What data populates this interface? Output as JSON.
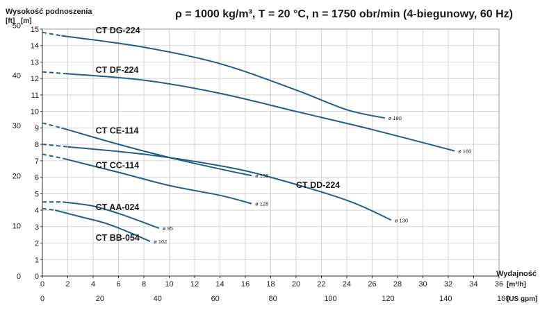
{
  "chart_data": {
    "type": "line",
    "title": "ρ = 1000 kg/m³, T = 20 °C, n = 1750 obr/min (4-biegunowy, 60 Hz)",
    "ylabel": "Wysokość podnoszenia",
    "y_units": [
      "[ft]",
      "[m]"
    ],
    "xlabel": "Wydajność",
    "x_units": [
      "[m³/h]",
      "[US gpm]"
    ],
    "xlim_m3h": [
      0,
      36
    ],
    "ylim_m": [
      0,
      15
    ],
    "x_ticks_m3h": [
      "0",
      "2",
      "4",
      "6",
      "8",
      "10",
      "12",
      "14",
      "16",
      "18",
      "20",
      "22",
      "24",
      "26",
      "28",
      "30",
      "32",
      "34",
      "36"
    ],
    "y_ticks_m": [
      "0",
      "1",
      "2",
      "3",
      "4",
      "5",
      "6",
      "7",
      "8",
      "9",
      "10",
      "11",
      "12",
      "13",
      "14",
      "15"
    ],
    "y_ticks_ft": [
      "0",
      "10",
      "20",
      "30",
      "40",
      "50"
    ],
    "x_ticks_gpm": [
      "0",
      "20",
      "40",
      "60",
      "80",
      "100",
      "120",
      "140",
      "160"
    ],
    "grid": true,
    "series": [
      {
        "name": "CT DG-224",
        "diameter": "ø 180",
        "dashed": [
          [
            0,
            14.8
          ],
          [
            1.5,
            14.6
          ]
        ],
        "points": [
          [
            1.5,
            14.6
          ],
          [
            8,
            13.9
          ],
          [
            14,
            12.9
          ],
          [
            20,
            11.3
          ],
          [
            24,
            10.1
          ],
          [
            27,
            9.6
          ]
        ]
      },
      {
        "name": "CT DF-224",
        "diameter": "ø 160",
        "dashed": [
          [
            0,
            12.4
          ],
          [
            1.8,
            12.3
          ]
        ],
        "points": [
          [
            1.8,
            12.3
          ],
          [
            8,
            11.9
          ],
          [
            14,
            11.1
          ],
          [
            20,
            10.0
          ],
          [
            26,
            8.9
          ],
          [
            32.5,
            7.6
          ]
        ]
      },
      {
        "name": "CT CE-114",
        "diameter": "ø 138",
        "dashed": [
          [
            0,
            9.3
          ],
          [
            1.5,
            9.0
          ]
        ],
        "points": [
          [
            1.5,
            9.0
          ],
          [
            6,
            8.0
          ],
          [
            10,
            7.2
          ],
          [
            14,
            6.5
          ],
          [
            16.5,
            6.1
          ]
        ]
      },
      {
        "name": "CT DD-224",
        "diameter": "ø 130",
        "dashed": [
          [
            0,
            8.0
          ],
          [
            2.0,
            7.85
          ]
        ],
        "points": [
          [
            2.0,
            7.85
          ],
          [
            8,
            7.4
          ],
          [
            14,
            6.7
          ],
          [
            18,
            6.0
          ],
          [
            24,
            4.6
          ],
          [
            27.5,
            3.4
          ]
        ]
      },
      {
        "name": "CT CC-114",
        "diameter": "ø 128",
        "dashed": [
          [
            0,
            7.4
          ],
          [
            1.6,
            7.15
          ]
        ],
        "points": [
          [
            1.6,
            7.15
          ],
          [
            6,
            6.3
          ],
          [
            10,
            5.5
          ],
          [
            14,
            4.9
          ],
          [
            16.5,
            4.4
          ]
        ]
      },
      {
        "name": "CT AA-024",
        "diameter": "ø 95",
        "dashed": [
          [
            0,
            4.5
          ],
          [
            1.6,
            4.5
          ]
        ],
        "points": [
          [
            1.6,
            4.5
          ],
          [
            4,
            4.25
          ],
          [
            6,
            3.8
          ],
          [
            8,
            3.25
          ],
          [
            9.2,
            2.9
          ]
        ]
      },
      {
        "name": "CT BB-054",
        "diameter": "ø 102",
        "dashed": [
          [
            0,
            4.1
          ],
          [
            1.0,
            4.0
          ]
        ],
        "points": [
          [
            1.0,
            4.0
          ],
          [
            3,
            3.6
          ],
          [
            5,
            3.2
          ],
          [
            7,
            2.6
          ],
          [
            8.5,
            2.1
          ]
        ]
      }
    ]
  }
}
